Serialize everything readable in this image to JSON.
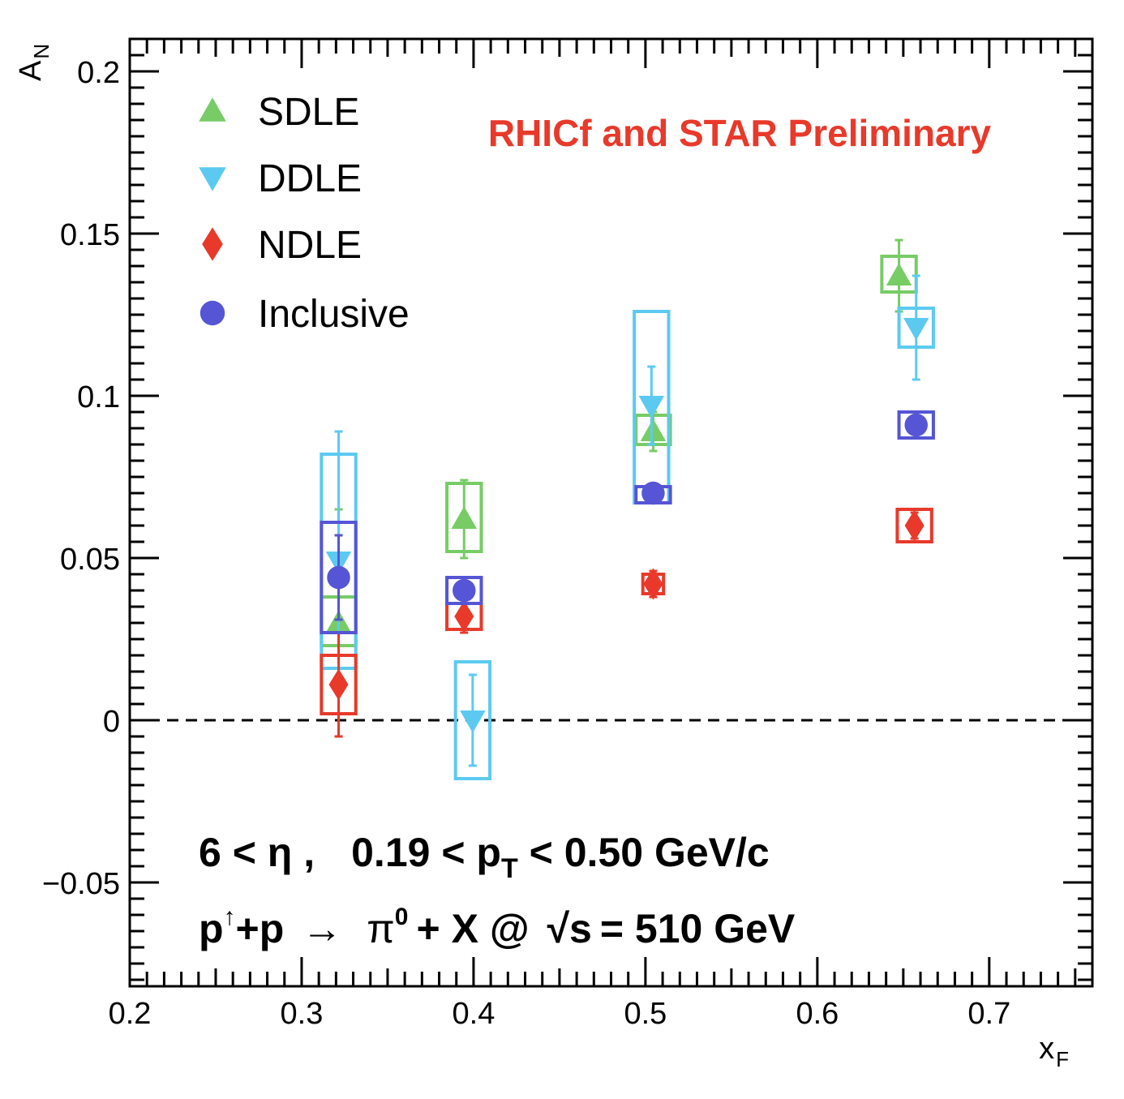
{
  "chart_data": {
    "type": "scatter",
    "xlabel_main": "x",
    "xlabel_sub": "F",
    "ylabel_main": "A",
    "ylabel_sub": "N",
    "xlim": [
      0.2,
      0.76
    ],
    "ylim": [
      -0.082,
      0.21
    ],
    "x_ticks": [
      0.2,
      0.3,
      0.4,
      0.5,
      0.6,
      0.7
    ],
    "x_tick_labels": [
      "0.2",
      "0.3",
      "0.4",
      "0.5",
      "0.6",
      "0.7"
    ],
    "y_ticks": [
      -0.05,
      0,
      0.05,
      0.1,
      0.15,
      0.2
    ],
    "y_tick_labels": [
      "−0.05",
      "0",
      "0.05",
      "0.1",
      "0.15",
      "0.2"
    ],
    "zero_line": true,
    "legend_position": "top-left",
    "series": [
      {
        "name": "SDLE",
        "marker": "triangle-up",
        "color": "#77cc66",
        "points": [
          {
            "x": 0.3215,
            "y": 0.03,
            "stat": 0.035,
            "sys_lo": 0.023,
            "sys_hi": 0.038,
            "sys_halfwidth": 0.01
          },
          {
            "x": 0.3945,
            "y": 0.062,
            "stat": 0.012,
            "sys_lo": 0.052,
            "sys_hi": 0.073,
            "sys_halfwidth": 0.01
          },
          {
            "x": 0.5045,
            "y": 0.089,
            "stat": 0.006,
            "sys_lo": 0.085,
            "sys_hi": 0.094,
            "sys_halfwidth": 0.01
          },
          {
            "x": 0.6475,
            "y": 0.137,
            "stat": 0.011,
            "sys_lo": 0.132,
            "sys_hi": 0.143,
            "sys_halfwidth": 0.01
          }
        ]
      },
      {
        "name": "DDLE",
        "marker": "triangle-down",
        "color": "#5ccaf0",
        "points": [
          {
            "x": 0.3215,
            "y": 0.049,
            "stat": 0.04,
            "sys_lo": 0.016,
            "sys_hi": 0.082,
            "sys_halfwidth": 0.01
          },
          {
            "x": 0.3995,
            "y": 0.0,
            "stat": 0.014,
            "sys_lo": -0.018,
            "sys_hi": 0.018,
            "sys_halfwidth": 0.01
          },
          {
            "x": 0.5035,
            "y": 0.097,
            "stat": 0.012,
            "sys_lo": 0.067,
            "sys_hi": 0.126,
            "sys_halfwidth": 0.01
          },
          {
            "x": 0.6575,
            "y": 0.121,
            "stat": 0.016,
            "sys_lo": 0.115,
            "sys_hi": 0.127,
            "sys_halfwidth": 0.01
          }
        ]
      },
      {
        "name": "NDLE",
        "marker": "diamond",
        "color": "#e8392a",
        "points": [
          {
            "x": 0.3215,
            "y": 0.011,
            "stat": 0.016,
            "sys_lo": 0.002,
            "sys_hi": 0.02,
            "sys_halfwidth": 0.01
          },
          {
            "x": 0.3945,
            "y": 0.032,
            "stat": 0.005,
            "sys_lo": 0.028,
            "sys_hi": 0.036,
            "sys_halfwidth": 0.01
          },
          {
            "x": 0.5045,
            "y": 0.042,
            "stat": 0.004,
            "sys_lo": 0.039,
            "sys_hi": 0.045,
            "sys_halfwidth": 0.006
          },
          {
            "x": 0.6565,
            "y": 0.06,
            "stat": 0.004,
            "sys_lo": 0.055,
            "sys_hi": 0.065,
            "sys_halfwidth": 0.01
          }
        ]
      },
      {
        "name": "Inclusive",
        "marker": "circle",
        "color": "#5555d6",
        "points": [
          {
            "x": 0.3215,
            "y": 0.044,
            "stat": 0.013,
            "sys_lo": 0.027,
            "sys_hi": 0.061,
            "sys_halfwidth": 0.01
          },
          {
            "x": 0.3945,
            "y": 0.04,
            "stat": 0.004,
            "sys_lo": 0.036,
            "sys_hi": 0.044,
            "sys_halfwidth": 0.01
          },
          {
            "x": 0.5045,
            "y": 0.07,
            "stat": 0.002,
            "sys_lo": 0.067,
            "sys_hi": 0.072,
            "sys_halfwidth": 0.01
          },
          {
            "x": 0.6575,
            "y": 0.091,
            "stat": 0.002,
            "sys_lo": 0.087,
            "sys_hi": 0.095,
            "sys_halfwidth": 0.01
          }
        ]
      }
    ],
    "annotations": {
      "preliminary": "RHICf and STAR Preliminary",
      "preliminary_color": "#e8392a",
      "kin_eta": "6 < η ,",
      "kin_pt_pre": "0.19 < p",
      "kin_pt_sub": "T",
      "kin_pt_post": " < 0.50 GeV/c",
      "process_p": "p",
      "process_arrow_sup": "↑",
      "process_mid": "+p",
      "process_to": "→",
      "process_pi": "π",
      "process_pi_sup": "0",
      "process_x": "+ X @",
      "process_sqrt": "√s",
      "process_energy": "= 510 GeV"
    }
  }
}
